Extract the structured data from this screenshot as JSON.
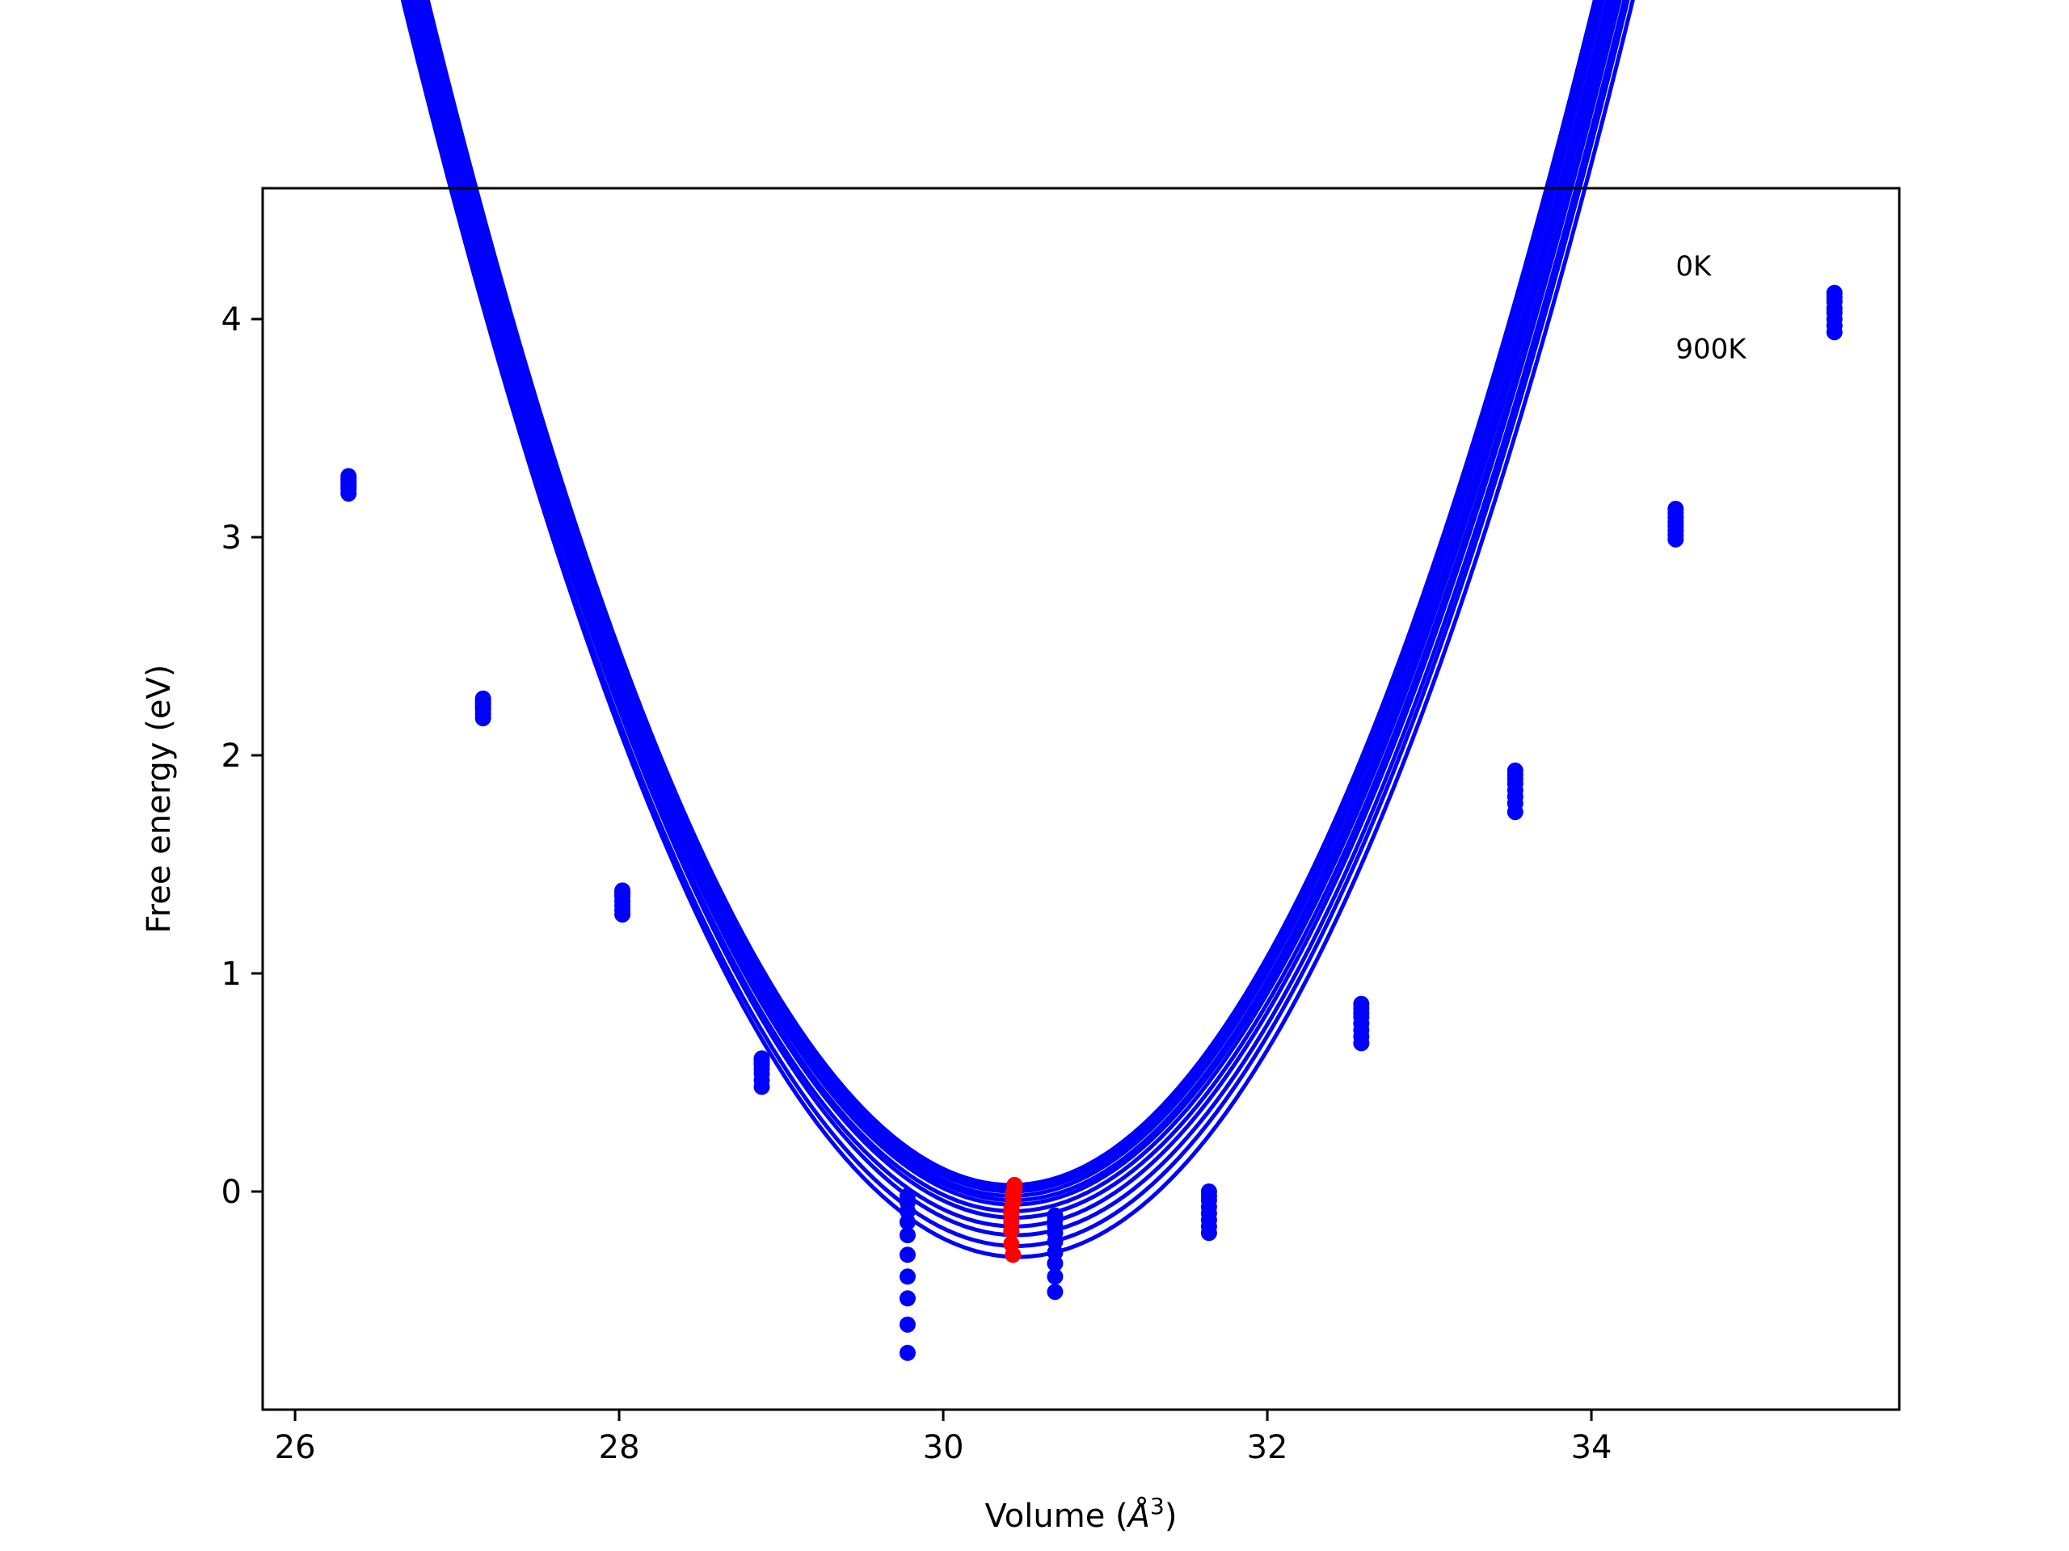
{
  "chart_data": {
    "type": "scatter",
    "xlabel_prefix": "Volume (",
    "xlabel_unit": "Å",
    "xlabel_exp": "3",
    "xlabel_suffix": ")",
    "ylabel": "Free energy (eV)",
    "xlim": [
      25.8,
      35.9
    ],
    "ylim": [
      -1.0,
      4.6
    ],
    "xticks": [
      26,
      28,
      30,
      32,
      34
    ],
    "yticks": [
      0,
      1,
      2,
      3,
      4
    ],
    "grid": false,
    "annotations": [
      {
        "text": "0K",
        "x": 34.52,
        "y": 4.2
      },
      {
        "text": "900K",
        "x": 34.52,
        "y": 3.82
      }
    ],
    "colors": {
      "curves": "#0000ff",
      "points": "#0000ff",
      "minima": "#ff0000"
    },
    "fit_curves": {
      "x_range": [
        26.3,
        35.47
      ],
      "curves": [
        {
          "v0": 30.42,
          "e0": 0.03,
          "a": 0.419
        },
        {
          "v0": 30.42,
          "e0": 0.02,
          "a": 0.417
        },
        {
          "v0": 30.42,
          "e0": 0.01,
          "a": 0.415
        },
        {
          "v0": 30.42,
          "e0": 0.0,
          "a": 0.413
        },
        {
          "v0": 30.42,
          "e0": -0.02,
          "a": 0.411
        },
        {
          "v0": 30.43,
          "e0": -0.04,
          "a": 0.409
        },
        {
          "v0": 30.43,
          "e0": -0.06,
          "a": 0.407
        },
        {
          "v0": 30.43,
          "e0": -0.09,
          "a": 0.405
        },
        {
          "v0": 30.44,
          "e0": -0.12,
          "a": 0.404
        },
        {
          "v0": 30.44,
          "e0": -0.16,
          "a": 0.403
        },
        {
          "v0": 30.45,
          "e0": -0.2,
          "a": 0.402
        },
        {
          "v0": 30.45,
          "e0": -0.25,
          "a": 0.401
        },
        {
          "v0": 30.46,
          "e0": -0.3,
          "a": 0.4
        }
      ]
    },
    "data_points": [
      {
        "x": 26.33,
        "y": [
          3.28,
          3.27,
          3.26,
          3.25,
          3.24,
          3.23,
          3.22,
          3.2
        ]
      },
      {
        "x": 27.16,
        "y": [
          2.26,
          2.25,
          2.24,
          2.23,
          2.22,
          2.21,
          2.19,
          2.17
        ]
      },
      {
        "x": 28.02,
        "y": [
          1.38,
          1.37,
          1.36,
          1.35,
          1.33,
          1.31,
          1.29,
          1.27
        ]
      },
      {
        "x": 28.88,
        "y": [
          0.61,
          0.6,
          0.59,
          0.58,
          0.56,
          0.54,
          0.51,
          0.48
        ]
      },
      {
        "x": 29.78,
        "y": [
          -0.02,
          -0.05,
          -0.09,
          -0.14,
          -0.2,
          -0.29,
          -0.39,
          -0.49,
          -0.61,
          -0.74
        ]
      },
      {
        "x": 30.69,
        "y": [
          -0.11,
          -0.13,
          -0.16,
          -0.19,
          -0.23,
          -0.28,
          -0.33,
          -0.39,
          -0.46
        ]
      },
      {
        "x": 31.64,
        "y": [
          -0.0,
          -0.02,
          -0.04,
          -0.07,
          -0.1,
          -0.13,
          -0.16,
          -0.19
        ]
      },
      {
        "x": 32.58,
        "y": [
          0.86,
          0.84,
          0.82,
          0.8,
          0.77,
          0.74,
          0.71,
          0.68
        ]
      },
      {
        "x": 33.53,
        "y": [
          1.93,
          1.91,
          1.89,
          1.87,
          1.84,
          1.81,
          1.78,
          1.74
        ]
      },
      {
        "x": 34.52,
        "y": [
          3.13,
          3.11,
          3.09,
          3.07,
          3.05,
          3.03,
          3.01,
          2.99
        ]
      },
      {
        "x": 35.5,
        "y": [
          4.12,
          4.1,
          4.08,
          4.05,
          4.03,
          4.0,
          3.97,
          3.94
        ]
      }
    ],
    "minima_points": {
      "x": [
        30.44,
        30.44,
        30.43,
        30.43,
        30.43,
        30.42,
        30.42,
        30.42,
        30.42,
        30.42,
        30.43
      ],
      "y": [
        0.03,
        0.01,
        -0.01,
        -0.03,
        -0.05,
        -0.08,
        -0.1,
        -0.14,
        -0.18,
        -0.24,
        -0.29
      ]
    }
  }
}
